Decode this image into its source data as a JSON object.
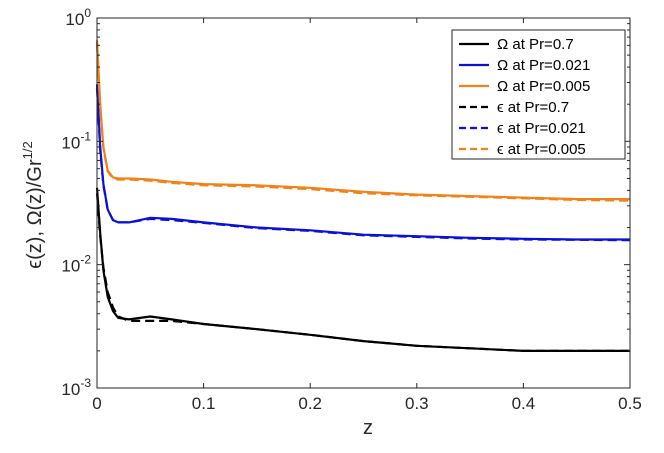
{
  "chart_data": {
    "type": "line",
    "title": "",
    "xlabel": "z",
    "ylabel": "ϵ(z), Ω(z)/Gr",
    "ylabel_sup": "1/2",
    "xlim": [
      0,
      0.5
    ],
    "ylim": [
      0.001,
      1
    ],
    "yscale": "log",
    "x_ticks": [
      "0",
      "0.1",
      "0.2",
      "0.3",
      "0.4",
      "0.5"
    ],
    "y_ticks": [
      {
        "base": "10",
        "exp": "0"
      },
      {
        "base": "10",
        "exp": "-1"
      },
      {
        "base": "10",
        "exp": "-2"
      },
      {
        "base": "10",
        "exp": "-3"
      }
    ],
    "legend_position": "top-right",
    "grid": false,
    "series": [
      {
        "name": "Ω at Pr=0.7",
        "color": "#000000",
        "dash": "solid",
        "x": [
          0,
          0.003,
          0.006,
          0.01,
          0.015,
          0.02,
          0.03,
          0.05,
          0.07,
          0.1,
          0.15,
          0.2,
          0.25,
          0.3,
          0.35,
          0.4,
          0.45,
          0.5
        ],
        "y": [
          0.042,
          0.018,
          0.009,
          0.0055,
          0.0042,
          0.0037,
          0.0036,
          0.0038,
          0.0036,
          0.0033,
          0.003,
          0.0027,
          0.0024,
          0.0022,
          0.0021,
          0.002,
          0.002,
          0.002
        ]
      },
      {
        "name": "Ω at Pr=0.021",
        "color": "#0a10d8",
        "dash": "solid",
        "x": [
          0,
          0.003,
          0.006,
          0.01,
          0.015,
          0.02,
          0.03,
          0.05,
          0.07,
          0.1,
          0.15,
          0.2,
          0.25,
          0.3,
          0.35,
          0.4,
          0.45,
          0.5
        ],
        "y": [
          0.29,
          0.09,
          0.045,
          0.028,
          0.023,
          0.022,
          0.022,
          0.024,
          0.0235,
          0.022,
          0.02,
          0.019,
          0.0175,
          0.017,
          0.0165,
          0.0162,
          0.016,
          0.016
        ]
      },
      {
        "name": "Ω at Pr=0.005",
        "color": "#f08216",
        "dash": "solid",
        "x": [
          0,
          0.003,
          0.006,
          0.01,
          0.015,
          0.02,
          0.03,
          0.05,
          0.07,
          0.1,
          0.15,
          0.2,
          0.25,
          0.3,
          0.35,
          0.4,
          0.45,
          0.5
        ],
        "y": [
          0.66,
          0.2,
          0.09,
          0.058,
          0.051,
          0.05,
          0.05,
          0.049,
          0.047,
          0.045,
          0.044,
          0.042,
          0.039,
          0.037,
          0.036,
          0.035,
          0.034,
          0.034
        ]
      },
      {
        "name": "ϵ at Pr=0.7",
        "color": "#000000",
        "dash": "dashed",
        "x": [
          0,
          0.003,
          0.006,
          0.01,
          0.015,
          0.02,
          0.03,
          0.05,
          0.07,
          0.1,
          0.15,
          0.2,
          0.25,
          0.3,
          0.35,
          0.4,
          0.45,
          0.5
        ],
        "y": [
          0.038,
          0.017,
          0.0095,
          0.006,
          0.0045,
          0.0038,
          0.0035,
          0.0035,
          0.0035,
          0.0033,
          0.003,
          0.0027,
          0.0024,
          0.0022,
          0.0021,
          0.002,
          0.002,
          0.002
        ]
      },
      {
        "name": "ϵ at Pr=0.021",
        "color": "#0a10d8",
        "dash": "dashed",
        "x": [
          0,
          0.003,
          0.006,
          0.01,
          0.015,
          0.02,
          0.03,
          0.05,
          0.07,
          0.1,
          0.15,
          0.2,
          0.25,
          0.3,
          0.35,
          0.4,
          0.45,
          0.5
        ],
        "y": [
          0.27,
          0.085,
          0.044,
          0.028,
          0.023,
          0.022,
          0.022,
          0.0235,
          0.023,
          0.0218,
          0.0198,
          0.0188,
          0.0173,
          0.0168,
          0.0163,
          0.016,
          0.0159,
          0.0158
        ]
      },
      {
        "name": "ϵ at Pr=0.005",
        "color": "#f08216",
        "dash": "dashed",
        "x": [
          0,
          0.003,
          0.006,
          0.01,
          0.015,
          0.02,
          0.03,
          0.05,
          0.07,
          0.1,
          0.15,
          0.2,
          0.25,
          0.3,
          0.35,
          0.4,
          0.45,
          0.5
        ],
        "y": [
          0.62,
          0.19,
          0.088,
          0.057,
          0.05,
          0.049,
          0.049,
          0.048,
          0.046,
          0.044,
          0.043,
          0.041,
          0.038,
          0.0365,
          0.0355,
          0.0345,
          0.0335,
          0.033
        ]
      }
    ]
  }
}
